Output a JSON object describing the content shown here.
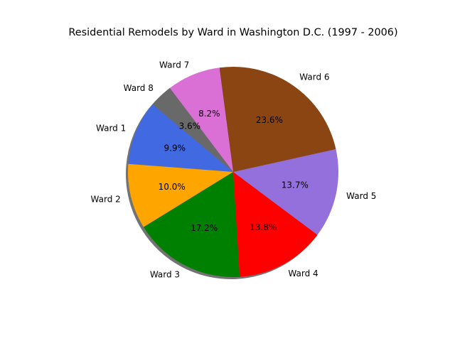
{
  "chart_data": {
    "type": "pie",
    "title": "Residential Remodels by Ward in Washington D.C. (1997 - 2006)",
    "labels": [
      "Ward 1",
      "Ward 2",
      "Ward 3",
      "Ward 4",
      "Ward 5",
      "Ward 6",
      "Ward 7",
      "Ward 8"
    ],
    "values": [
      9.9,
      10.0,
      17.2,
      13.8,
      13.7,
      23.6,
      8.2,
      3.6
    ],
    "value_labels": [
      "9.9%",
      "10.0%",
      "17.2%",
      "13.8%",
      "13.7%",
      "23.6%",
      "8.2%",
      "3.6%"
    ],
    "colors": [
      "#4169E1",
      "#FFA500",
      "#008000",
      "#FF0000",
      "#9370DB",
      "#8B4513",
      "#DA70D6",
      "#696969"
    ],
    "shadow": true,
    "start_angle_deg": 140,
    "direction": "counterclockwise"
  }
}
